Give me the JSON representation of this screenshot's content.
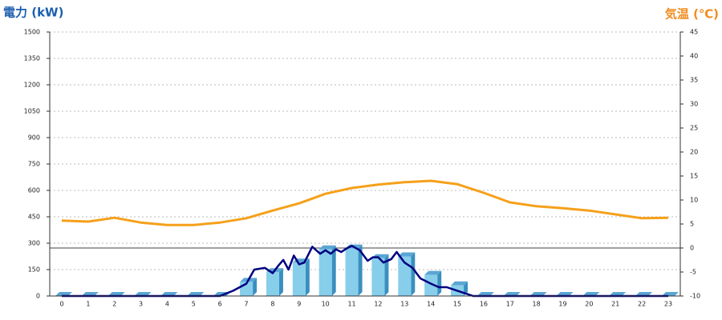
{
  "chart_data": {
    "type": "bar-line",
    "y_label": "電力 (kW)",
    "y2_label": "気温 (℃)",
    "categories": [
      0,
      1,
      2,
      3,
      4,
      5,
      6,
      7,
      8,
      9,
      10,
      11,
      12,
      13,
      14,
      15,
      16,
      17,
      18,
      19,
      20,
      21,
      22,
      23
    ],
    "ylim": [
      0,
      1500
    ],
    "yticks": [
      0,
      150,
      300,
      450,
      600,
      750,
      900,
      1050,
      1200,
      1350,
      1500
    ],
    "y2lim": [
      -10,
      45
    ],
    "y2ticks": [
      -10,
      -5,
      0,
      5,
      10,
      15,
      20,
      25,
      30,
      35,
      40,
      45
    ],
    "grid": true,
    "y2_zero_line": true,
    "series": [
      {
        "type": "bar",
        "color": "#87ceeb",
        "values": [
          0,
          0,
          0,
          0,
          0,
          0,
          0,
          80,
          135,
          190,
          265,
          270,
          215,
          225,
          120,
          60,
          0,
          0,
          0,
          0,
          0,
          0,
          0,
          0
        ]
      },
      {
        "type": "line",
        "axis": "y2",
        "color": "#f5a01a",
        "values": [
          5.7,
          5.5,
          6.3,
          5.3,
          4.8,
          4.8,
          5.3,
          6.2,
          7.8,
          9.3,
          11.3,
          12.5,
          13.2,
          13.7,
          14,
          13.3,
          11.5,
          9.5,
          8.7,
          8.3,
          7.8,
          7,
          6.2,
          6.3
        ]
      },
      {
        "type": "line",
        "color": "#000080",
        "x": [
          0,
          6,
          6.5,
          7,
          7.3,
          7.7,
          8,
          8.2,
          8.4,
          8.6,
          8.8,
          9,
          9.2,
          9.5,
          9.8,
          10,
          10.2,
          10.4,
          10.6,
          10.8,
          11,
          11.3,
          11.6,
          11.8,
          12,
          12.2,
          12.5,
          12.7,
          13,
          13.3,
          13.6,
          14,
          14.3,
          14.6,
          15,
          15.3,
          15.6,
          16,
          23
        ],
        "values": [
          0,
          0,
          30,
          70,
          150,
          160,
          130,
          170,
          205,
          150,
          230,
          180,
          190,
          280,
          240,
          260,
          240,
          265,
          250,
          270,
          285,
          260,
          200,
          220,
          220,
          190,
          210,
          250,
          190,
          160,
          100,
          70,
          50,
          50,
          30,
          15,
          0,
          0,
          0
        ]
      }
    ]
  }
}
